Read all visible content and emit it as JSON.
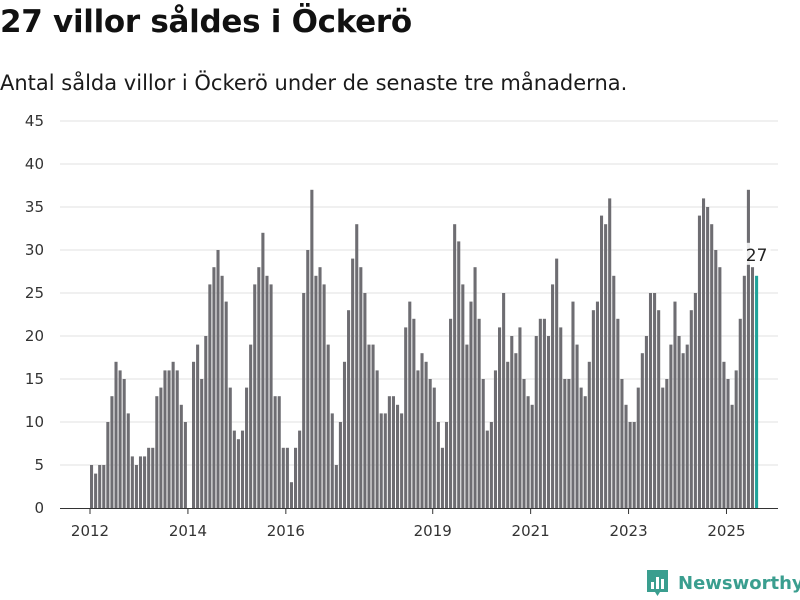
{
  "header": {
    "title": "27 villor såldes i Öckerö",
    "subtitle": "Antal sålda villor i Öckerö under de senaste tre månaderna."
  },
  "brand": {
    "name": "Newsworthy"
  },
  "colors": {
    "bar": "#6e6d72",
    "highlight": "#1fa29a",
    "grid": "#e2e2e2",
    "brand": "#3a9e8f"
  },
  "chart_data": {
    "type": "bar",
    "title": "27 villor såldes i Öckerö",
    "subtitle": "Antal sålda villor i Öckerö under de senaste tre månaderna.",
    "xlabel": "",
    "ylabel": "",
    "ylim": [
      0,
      45
    ],
    "yticks": [
      "0",
      "5",
      "10",
      "15",
      "20",
      "25",
      "30",
      "35",
      "40",
      "45"
    ],
    "xticks": [
      "2012",
      "2014",
      "2016",
      "2019",
      "2021",
      "2023",
      "2025"
    ],
    "grid": true,
    "start": "2012-01",
    "values": [
      5,
      4,
      5,
      5,
      10,
      13,
      17,
      16,
      15,
      11,
      6,
      5,
      6,
      6,
      7,
      7,
      13,
      14,
      16,
      16,
      17,
      16,
      12,
      10,
      0,
      17,
      19,
      15,
      20,
      26,
      28,
      30,
      27,
      24,
      14,
      9,
      8,
      9,
      14,
      19,
      26,
      28,
      32,
      27,
      26,
      13,
      13,
      7,
      7,
      3,
      7,
      9,
      25,
      30,
      37,
      27,
      28,
      26,
      19,
      11,
      5,
      10,
      17,
      23,
      29,
      33,
      28,
      25,
      19,
      19,
      16,
      11,
      11,
      13,
      13,
      12,
      11,
      21,
      24,
      22,
      16,
      18,
      17,
      15,
      14,
      10,
      7,
      10,
      22,
      33,
      31,
      26,
      19,
      24,
      28,
      22,
      15,
      9,
      10,
      16,
      21,
      25,
      17,
      20,
      18,
      21,
      15,
      13,
      12,
      20,
      22,
      22,
      20,
      26,
      29,
      21,
      15,
      15,
      24,
      19,
      14,
      13,
      17,
      23,
      24,
      34,
      33,
      36,
      27,
      22,
      15,
      12,
      10,
      10,
      14,
      18,
      20,
      25,
      25,
      23,
      14,
      15,
      19,
      24,
      20,
      18,
      19,
      23,
      25,
      34,
      36,
      35,
      33,
      30,
      28,
      17,
      15,
      12,
      16,
      22,
      27,
      37,
      28,
      27
    ],
    "highlight": {
      "label": "27",
      "value": 27
    }
  }
}
